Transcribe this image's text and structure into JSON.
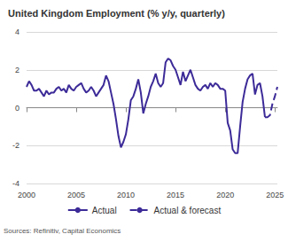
{
  "chart_data": {
    "type": "line",
    "title": "United Kingdom Employment (% y/y, quarterly)",
    "source": "Sources: Refinitiv, Capital Economics",
    "x": [
      2000,
      2000.25,
      2000.5,
      2000.75,
      2001,
      2001.25,
      2001.5,
      2001.75,
      2002,
      2002.25,
      2002.5,
      2002.75,
      2003,
      2003.25,
      2003.5,
      2003.75,
      2004,
      2004.25,
      2004.5,
      2004.75,
      2005,
      2005.25,
      2005.5,
      2005.75,
      2006,
      2006.25,
      2006.5,
      2006.75,
      2007,
      2007.25,
      2007.5,
      2007.75,
      2008,
      2008.25,
      2008.5,
      2008.75,
      2009,
      2009.25,
      2009.5,
      2009.75,
      2010,
      2010.25,
      2010.5,
      2010.75,
      2011,
      2011.25,
      2011.5,
      2011.75,
      2012,
      2012.25,
      2012.5,
      2012.75,
      2013,
      2013.25,
      2013.5,
      2013.75,
      2014,
      2014.25,
      2014.5,
      2014.75,
      2015,
      2015.25,
      2015.5,
      2015.75,
      2016,
      2016.25,
      2016.5,
      2016.75,
      2017,
      2017.25,
      2017.5,
      2017.75,
      2018,
      2018.25,
      2018.5,
      2018.75,
      2019,
      2019.25,
      2019.5,
      2019.75,
      2020,
      2020.25,
      2020.5,
      2020.75,
      2021,
      2021.25,
      2021.5,
      2021.75,
      2022,
      2022.25,
      2022.5,
      2022.75,
      2023,
      2023.25,
      2023.5,
      2023.75,
      2024,
      2024.25,
      2024.5,
      2024.75,
      2025,
      2025.25
    ],
    "series": [
      {
        "name": "Actual",
        "color": "#3c2b98",
        "line_style": "solid",
        "values": [
          1.1,
          1.4,
          1.2,
          0.9,
          0.9,
          1.0,
          0.8,
          0.6,
          0.9,
          0.7,
          0.8,
          0.8,
          1.0,
          1.1,
          0.9,
          1.0,
          0.8,
          1.2,
          1.0,
          0.9,
          1.1,
          1.2,
          1.3,
          1.0,
          0.8,
          0.9,
          1.1,
          0.9,
          0.6,
          0.8,
          1.0,
          1.2,
          1.7,
          1.4,
          0.8,
          0.2,
          -0.6,
          -1.5,
          -2.1,
          -1.8,
          -1.4,
          -0.6,
          0.4,
          0.6,
          1.0,
          1.5,
          0.8,
          -0.3,
          0.2,
          0.6,
          1.1,
          1.4,
          1.8,
          1.3,
          1.1,
          1.3,
          2.4,
          2.6,
          2.5,
          2.2,
          2.0,
          1.6,
          1.2,
          1.9,
          1.4,
          1.7,
          2.0,
          1.6,
          1.2,
          1.0,
          0.9,
          1.1,
          1.2,
          1.0,
          1.3,
          1.1,
          1.3,
          1.2,
          1.0,
          1.0,
          0.9,
          -0.8,
          -1.2,
          -2.2,
          -2.4,
          -2.4,
          -1.0,
          0.3,
          1.0,
          1.5,
          1.7,
          1.8,
          0.7,
          1.2,
          1.3,
          0.6,
          -0.5,
          null,
          null,
          null,
          null,
          null
        ]
      },
      {
        "name": "Actual & forecast",
        "color": "#3c2b98",
        "line_style": "dashed",
        "values": [
          null,
          null,
          null,
          null,
          null,
          null,
          null,
          null,
          null,
          null,
          null,
          null,
          null,
          null,
          null,
          null,
          null,
          null,
          null,
          null,
          null,
          null,
          null,
          null,
          null,
          null,
          null,
          null,
          null,
          null,
          null,
          null,
          null,
          null,
          null,
          null,
          null,
          null,
          null,
          null,
          null,
          null,
          null,
          null,
          null,
          null,
          null,
          null,
          null,
          null,
          null,
          null,
          null,
          null,
          null,
          null,
          null,
          null,
          null,
          null,
          null,
          null,
          null,
          null,
          null,
          null,
          null,
          null,
          null,
          null,
          null,
          null,
          null,
          null,
          null,
          null,
          null,
          null,
          null,
          null,
          null,
          null,
          null,
          null,
          null,
          null,
          null,
          null,
          null,
          null,
          null,
          null,
          null,
          null,
          null,
          null,
          -0.5,
          -0.5,
          -0.4,
          0.2,
          0.6,
          1.1
        ]
      }
    ],
    "xlim": [
      2000,
      2025.25
    ],
    "xticks": [
      2000,
      2005,
      2010,
      2015,
      2020,
      2025
    ],
    "ylim": [
      -4,
      4
    ],
    "yticks": [
      -4,
      -2,
      0,
      2,
      4
    ],
    "grid": true,
    "legend": "bottom",
    "marker": "none"
  }
}
